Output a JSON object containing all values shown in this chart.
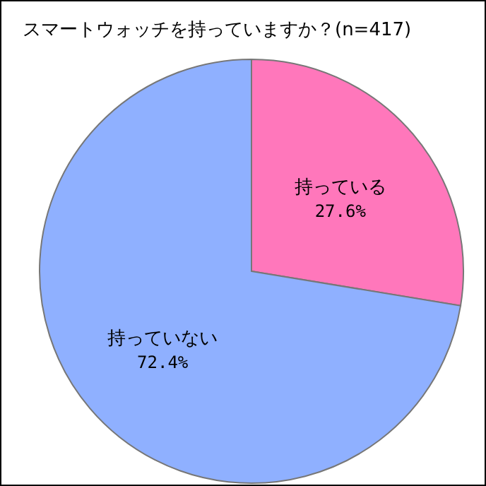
{
  "chart_data": {
    "type": "pie",
    "title": "スマートウォッチを持っていますか？(n=417)",
    "categories": [
      "持っている",
      "持っていない"
    ],
    "values": [
      27.6,
      72.4
    ],
    "colors": [
      "#ff77bb",
      "#8fb0ff"
    ],
    "value_labels": [
      "27.6%",
      "72.4%"
    ]
  }
}
